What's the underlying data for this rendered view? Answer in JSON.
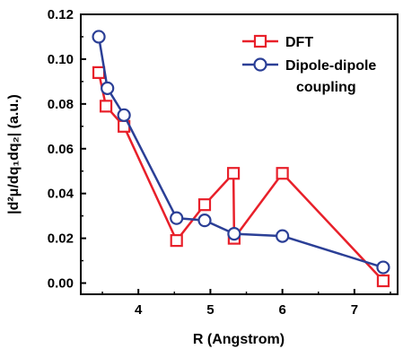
{
  "chart_data": {
    "type": "line",
    "xlabel": "R (Angstrom)",
    "ylabel": "|d²μ/dq₁dq₂| (a.u.)",
    "xlim": [
      3.2,
      7.6
    ],
    "ylim": [
      -0.005,
      0.12
    ],
    "x_ticks": [
      4,
      5,
      6,
      7
    ],
    "x_tick_labels": [
      "4",
      "5",
      "6",
      "7"
    ],
    "y_ticks": [
      0.0,
      0.02,
      0.04,
      0.06,
      0.08,
      0.1,
      0.12
    ],
    "y_tick_labels": [
      "0.00",
      "0.02",
      "0.04",
      "0.06",
      "0.08",
      "0.10",
      "0.12"
    ],
    "legend_position": "top-right",
    "grid": false,
    "series": [
      {
        "name": "DFT",
        "color": "#e8202a",
        "marker": "square",
        "x": [
          3.45,
          3.55,
          3.8,
          4.53,
          4.92,
          5.32,
          5.33,
          6.0,
          7.4
        ],
        "y": [
          0.094,
          0.079,
          0.07,
          0.019,
          0.035,
          0.049,
          0.02,
          0.049,
          0.001
        ]
      },
      {
        "name": "Dipole-dipole\ncoupling",
        "color": "#2b3f96",
        "marker": "circle",
        "x": [
          3.45,
          3.57,
          3.8,
          4.53,
          4.92,
          5.33,
          6.0,
          7.4
        ],
        "y": [
          0.11,
          0.087,
          0.075,
          0.029,
          0.028,
          0.022,
          0.021,
          0.007
        ]
      }
    ]
  }
}
